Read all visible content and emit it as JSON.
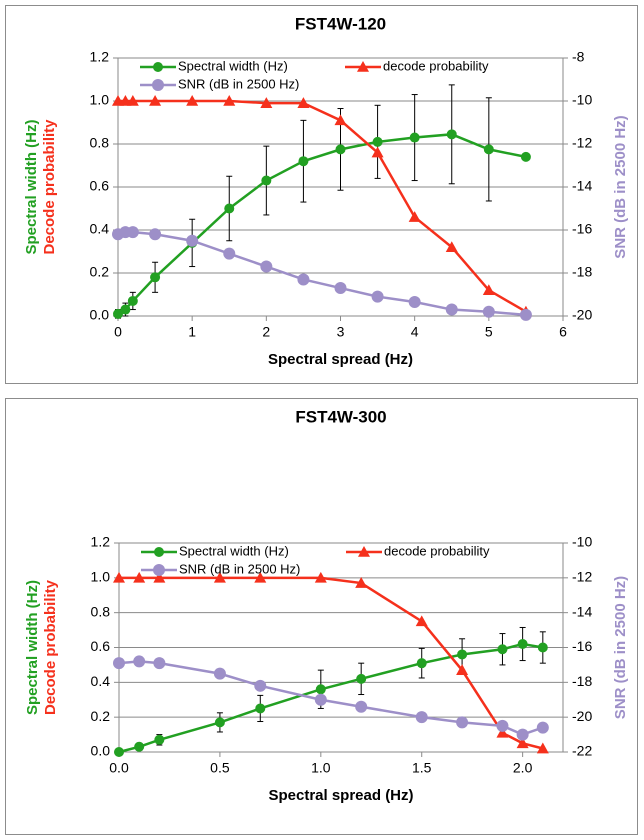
{
  "chart_data": [
    {
      "type": "line",
      "title": "FST4W-120",
      "xlabel": "Spectral spread (Hz)",
      "ylabel": [
        "Spectral width (Hz)",
        "Decode probability"
      ],
      "y2label": "SNR (dB in 2500 Hz)",
      "x": [
        0,
        0.1,
        0.2,
        0.5,
        1,
        1.5,
        2,
        2.5,
        3,
        3.5,
        4,
        4.5,
        5,
        5.5
      ],
      "series": [
        {
          "name": "Spectral width (Hz)",
          "color": "#22a022",
          "marker": "circle",
          "values": [
            0.01,
            0.03,
            0.07,
            0.18,
            0.34,
            0.5,
            0.63,
            0.72,
            0.775,
            0.81,
            0.83,
            0.845,
            0.775,
            0.74
          ],
          "errors": [
            0.02,
            0.03,
            0.04,
            0.07,
            0.11,
            0.15,
            0.16,
            0.19,
            0.19,
            0.17,
            0.2,
            0.23,
            0.24,
            null
          ]
        },
        {
          "name": "decode probability",
          "color": "#f5301c",
          "marker": "triangle",
          "values": [
            1,
            1,
            1,
            1,
            1,
            1,
            0.99,
            0.99,
            0.91,
            0.76,
            0.46,
            0.32,
            0.12,
            0.02
          ]
        },
        {
          "name": "SNR (dB in 2500 Hz)",
          "color": "#9d8fc8",
          "marker": "circle",
          "axis": "y2",
          "values": [
            -16.2,
            -16.1,
            -16.1,
            -16.2,
            -16.5,
            -17.1,
            -17.7,
            -18.3,
            -18.7,
            -19.1,
            -19.35,
            -19.7,
            -19.8,
            -19.95
          ]
        }
      ],
      "xlim": [
        0,
        6
      ],
      "xticks": [
        0,
        1,
        2,
        3,
        4,
        5,
        6
      ],
      "ylim": [
        0,
        1.2
      ],
      "yticks": [
        {
          "value": 0,
          "label": "0.0"
        },
        0.2,
        0.4,
        0.6,
        0.8,
        {
          "value": 1,
          "label": "1.0"
        },
        1.2
      ],
      "y2lim": [
        -20,
        -8
      ],
      "y2ticks": [
        -20,
        -18,
        -16,
        -14,
        -12,
        -10,
        -8
      ],
      "grid": true,
      "legend": "top"
    },
    {
      "type": "line",
      "title": "FST4W-300",
      "xlabel": "Spectral spread (Hz)",
      "ylabel": [
        "Spectral width (Hz)",
        "Decode probability"
      ],
      "y2label": "SNR (dB in 2500 Hz)",
      "x": [
        0,
        0.1,
        0.2,
        0.5,
        0.7,
        1,
        1.2,
        1.5,
        1.7,
        1.9,
        2,
        2.1
      ],
      "series": [
        {
          "name": "Spectral width (Hz)",
          "color": "#22a022",
          "marker": "circle",
          "values": [
            0,
            0.03,
            0.07,
            0.17,
            0.25,
            0.36,
            0.42,
            0.51,
            0.56,
            0.59,
            0.62,
            0.6
          ],
          "errors": [
            0.01,
            0.02,
            0.03,
            0.055,
            0.075,
            0.11,
            0.09,
            0.085,
            0.09,
            0.09,
            0.095,
            0.09
          ]
        },
        {
          "name": "decode probability",
          "color": "#f5301c",
          "marker": "triangle",
          "values": [
            1,
            1,
            1,
            1,
            1,
            1,
            0.97,
            0.75,
            0.47,
            0.11,
            0.05,
            0.02
          ]
        },
        {
          "name": "SNR (dB in 2500 Hz)",
          "color": "#9d8fc8",
          "marker": "circle",
          "axis": "y2",
          "values": [
            -16.9,
            -16.8,
            -16.9,
            -17.5,
            -18.2,
            -19,
            -19.4,
            -20,
            -20.3,
            -20.5,
            -21,
            -20.6
          ]
        }
      ],
      "xlim": [
        0,
        2.2
      ],
      "xticks": [
        {
          "value": 0,
          "label": "0.0"
        },
        0.5,
        {
          "value": 1,
          "label": "1.0"
        },
        1.5,
        {
          "value": 2,
          "label": "2.0"
        }
      ],
      "ylim": [
        0,
        1.2
      ],
      "yticks": [
        {
          "value": 0,
          "label": "0.0"
        },
        0.2,
        0.4,
        0.6,
        0.8,
        {
          "value": 1,
          "label": "1.0"
        },
        1.2
      ],
      "y2lim": [
        -22,
        -10
      ],
      "y2ticks": [
        -22,
        -20,
        -18,
        -16,
        -14,
        -12,
        -10
      ],
      "grid": true,
      "legend": "top"
    }
  ]
}
